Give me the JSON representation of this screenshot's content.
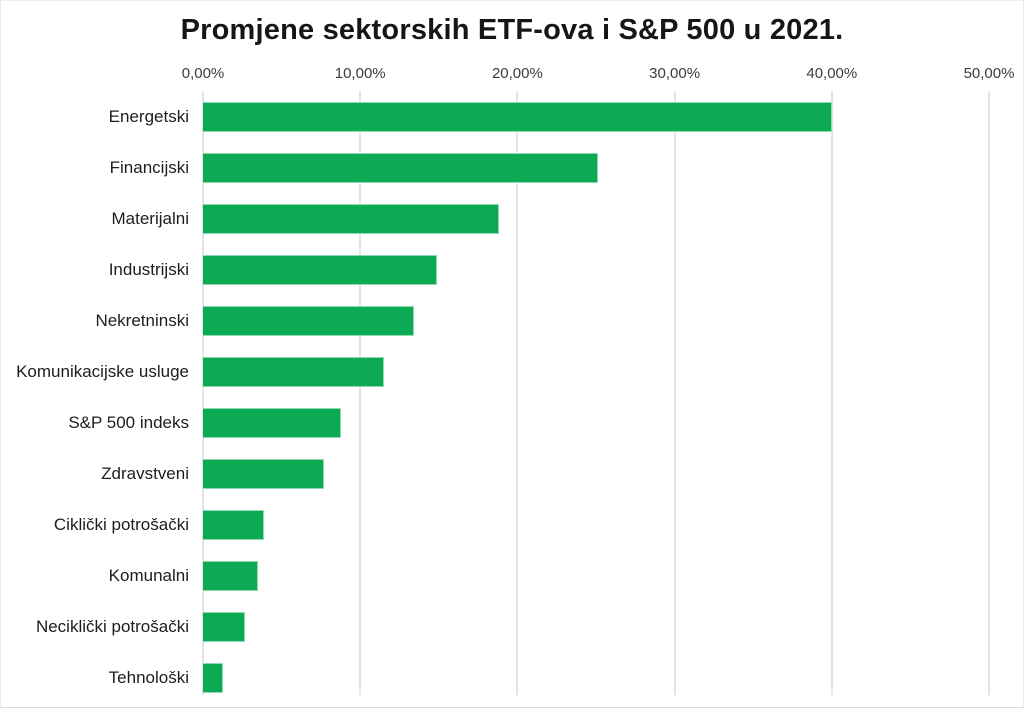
{
  "chart_data": {
    "type": "bar",
    "orientation": "horizontal",
    "title": "Promjene sektorskih ETF-ova i S&P 500 u 2021.",
    "categories": [
      "Energetski",
      "Financijski",
      "Materijalni",
      "Industrijski",
      "Nekretninski",
      "Komunikacijske usluge",
      "S&P 500 indeks",
      "Zdravstveni",
      "Ciklički potrošački",
      "Komunalni",
      "Neciklički potrošački",
      "Tehnološki"
    ],
    "values": [
      40.0,
      25.1,
      18.8,
      14.9,
      13.4,
      11.5,
      8.8,
      7.7,
      3.9,
      3.5,
      2.7,
      1.3
    ],
    "value_unit": "%",
    "xlabel": "",
    "ylabel": "",
    "xlim": [
      0,
      50
    ],
    "x_tick_step": 10,
    "x_ticks": [
      "0,00%",
      "10,00%",
      "20,00%",
      "30,00%",
      "40,00%",
      "50,00%"
    ],
    "grid": "vertical",
    "legend": "none",
    "colors": {
      "bar": "#0caa53",
      "gridline": "#e3e3e8",
      "title_text": "#161616",
      "label_text": "#1d1d1d",
      "tick_text": "#3c3c3c",
      "background": "#ffffff"
    }
  }
}
